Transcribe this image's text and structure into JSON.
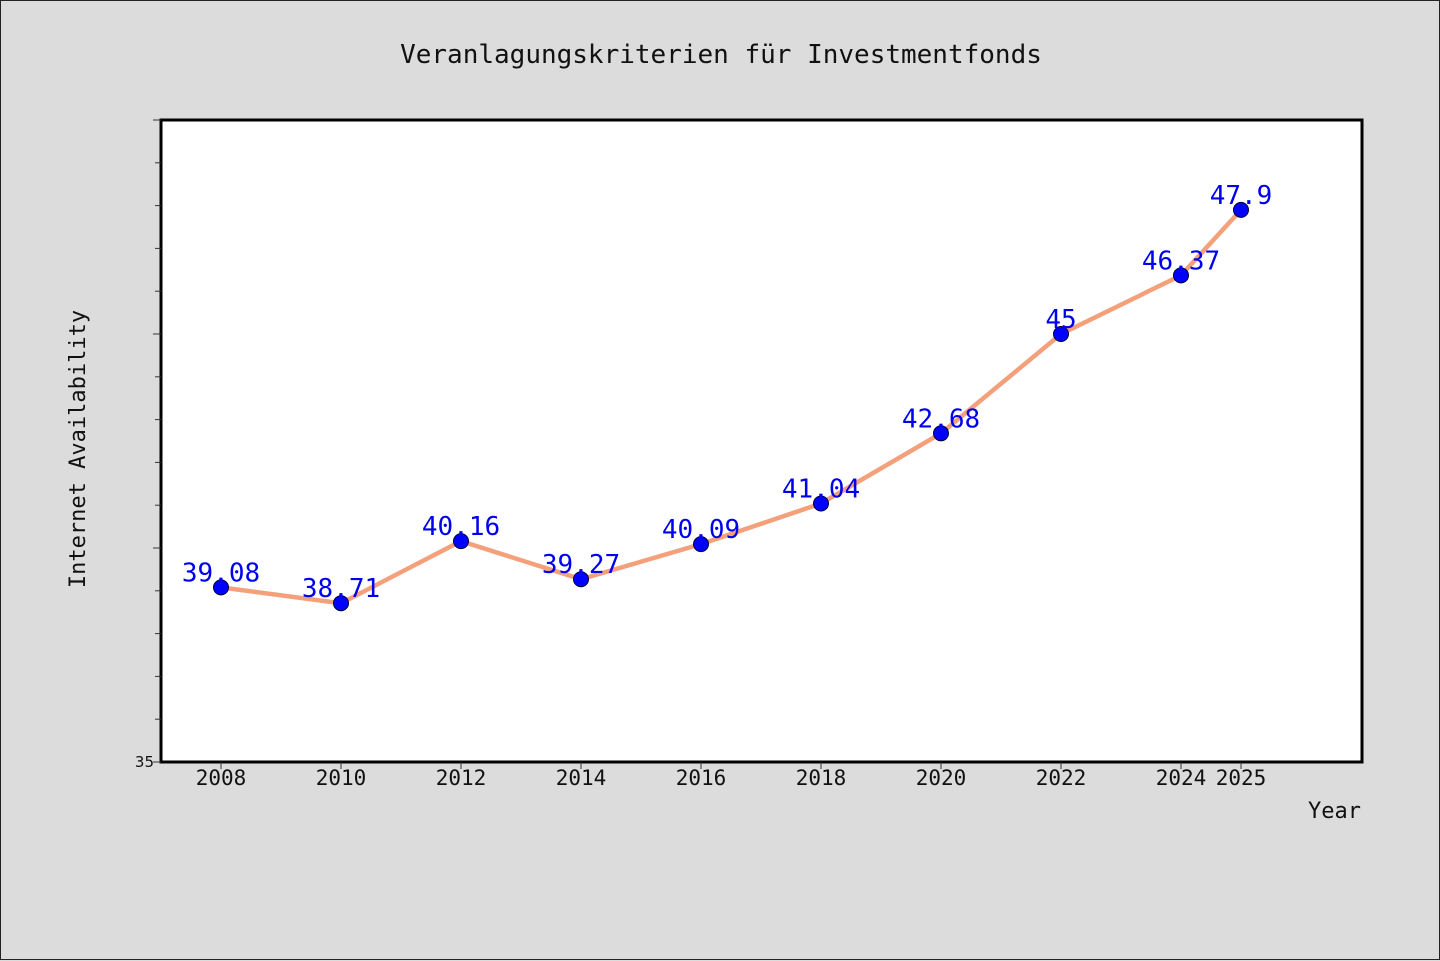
{
  "colors": {
    "background": "#dcdcdc",
    "plot_background": "#ffffff",
    "line": "#f4a07a",
    "marker": "#0000ff",
    "data_label": "#0000ee"
  },
  "chart_data": {
    "type": "line",
    "title": "Veranlagungskriterien für Investmentfonds",
    "xlabel": "Year",
    "ylabel": "Internet Availability",
    "x": [
      2008,
      2010,
      2012,
      2014,
      2016,
      2018,
      2020,
      2022,
      2024,
      2025
    ],
    "x_tick_labels": [
      "2008",
      "2010",
      "2012",
      "2014",
      "2016",
      "2018",
      "2020",
      "2022",
      "2024",
      "2025"
    ],
    "series": [
      {
        "values": [
          39.08,
          38.71,
          40.16,
          39.27,
          40.09,
          41.04,
          42.68,
          45,
          46.37,
          47.9
        ],
        "labels": [
          "39.08",
          "38.71",
          "40.16",
          "39.27",
          "40.09",
          "41.04",
          "42.68",
          "45",
          "46.37",
          "47.9"
        ]
      }
    ],
    "ylim": [
      35,
      50
    ],
    "y_major_ticks": [
      35,
      40,
      45,
      50
    ],
    "y_minor_step": 1,
    "y_tick_labels_shown": [
      "35"
    ],
    "grid": false,
    "legend": "none"
  }
}
